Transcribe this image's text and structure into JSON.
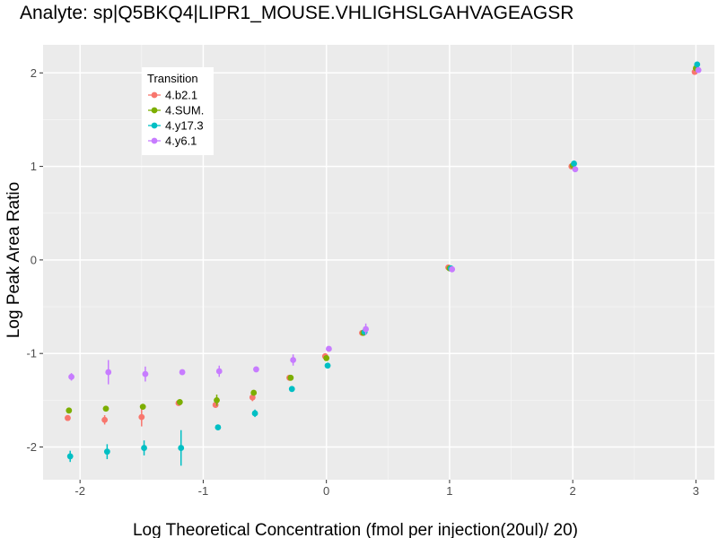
{
  "chart_data": {
    "type": "scatter",
    "title": "Analyte: sp|Q5BKQ4|LIPR1_MOUSE.VHLIGHSLGAHVAGEAGSR",
    "xlabel": "Log Theoretical Concentration (fmol per injection(20ul)/ 20)",
    "ylabel": "Log Peak Area Ratio",
    "xlim": [
      -2.3,
      3.15
    ],
    "ylim": [
      -2.35,
      2.3
    ],
    "x_ticks": [
      -2,
      -1,
      0,
      1,
      2,
      3
    ],
    "y_ticks": [
      -2,
      -1,
      0,
      1,
      2
    ],
    "grid": true,
    "legend": {
      "title": "Transition",
      "position": "top-left"
    },
    "series": [
      {
        "name": "4.b2.1",
        "color": "#F8766D",
        "points": [
          {
            "x": -2.1,
            "y": -1.69,
            "err": 0.03
          },
          {
            "x": -1.8,
            "y": -1.71,
            "err": 0.05
          },
          {
            "x": -1.5,
            "y": -1.68,
            "err": 0.1
          },
          {
            "x": -1.2,
            "y": -1.53,
            "err": 0.02
          },
          {
            "x": -0.9,
            "y": -1.55,
            "err": 0.02
          },
          {
            "x": -0.6,
            "y": -1.47,
            "err": 0.04
          },
          {
            "x": -0.3,
            "y": -1.26,
            "err": 0.02
          },
          {
            "x": -0.01,
            "y": -1.03,
            "err": 0.02
          },
          {
            "x": 0.29,
            "y": -0.78,
            "err": 0.02
          },
          {
            "x": 0.99,
            "y": -0.08,
            "err": 0.01
          },
          {
            "x": 1.99,
            "y": 1.0,
            "err": 0.01
          },
          {
            "x": 2.99,
            "y": 2.01,
            "err": 0.01
          }
        ]
      },
      {
        "name": "4.SUM.",
        "color": "#7CAE00",
        "points": [
          {
            "x": -2.09,
            "y": -1.61,
            "err": 0.01
          },
          {
            "x": -1.79,
            "y": -1.59,
            "err": 0.01
          },
          {
            "x": -1.49,
            "y": -1.57,
            "err": 0.01
          },
          {
            "x": -1.19,
            "y": -1.52,
            "err": 0.01
          },
          {
            "x": -0.89,
            "y": -1.5,
            "err": 0.06
          },
          {
            "x": -0.59,
            "y": -1.42,
            "err": 0.01
          },
          {
            "x": -0.29,
            "y": -1.26,
            "err": 0.01
          },
          {
            "x": 0.0,
            "y": -1.05,
            "err": 0.01
          },
          {
            "x": 0.3,
            "y": -0.78,
            "err": 0.01
          },
          {
            "x": 1.0,
            "y": -0.09,
            "err": 0.01
          },
          {
            "x": 2.0,
            "y": 1.01,
            "err": 0.01
          },
          {
            "x": 3.0,
            "y": 2.05,
            "err": 0.01
          }
        ]
      },
      {
        "name": "4.y17.3",
        "color": "#00BFC4",
        "points": [
          {
            "x": -2.08,
            "y": -2.1,
            "err": 0.06
          },
          {
            "x": -1.78,
            "y": -2.05,
            "err": 0.08
          },
          {
            "x": -1.48,
            "y": -2.01,
            "err": 0.08
          },
          {
            "x": -1.18,
            "y": -2.01,
            "err": 0.19
          },
          {
            "x": -0.88,
            "y": -1.79,
            "err": 0.03
          },
          {
            "x": -0.58,
            "y": -1.64,
            "err": 0.04
          },
          {
            "x": -0.28,
            "y": -1.38,
            "err": 0.01
          },
          {
            "x": 0.01,
            "y": -1.13,
            "err": 0.01
          },
          {
            "x": 0.31,
            "y": -0.77,
            "err": 0.01
          },
          {
            "x": 1.01,
            "y": -0.09,
            "err": 0.01
          },
          {
            "x": 2.01,
            "y": 1.03,
            "err": 0.01
          },
          {
            "x": 3.01,
            "y": 2.09,
            "err": 0.01
          }
        ]
      },
      {
        "name": "4.y6.1",
        "color": "#C77CFF",
        "points": [
          {
            "x": -2.07,
            "y": -1.25,
            "err": 0.04
          },
          {
            "x": -1.77,
            "y": -1.2,
            "err": 0.13
          },
          {
            "x": -1.47,
            "y": -1.22,
            "err": 0.08
          },
          {
            "x": -1.17,
            "y": -1.2,
            "err": 0.02
          },
          {
            "x": -0.87,
            "y": -1.19,
            "err": 0.06
          },
          {
            "x": -0.57,
            "y": -1.17,
            "err": 0.02
          },
          {
            "x": -0.27,
            "y": -1.07,
            "err": 0.06
          },
          {
            "x": 0.02,
            "y": -0.95,
            "err": 0.01
          },
          {
            "x": 0.32,
            "y": -0.74,
            "err": 0.06
          },
          {
            "x": 1.02,
            "y": -0.1,
            "err": 0.01
          },
          {
            "x": 2.02,
            "y": 0.97,
            "err": 0.02
          },
          {
            "x": 3.02,
            "y": 2.03,
            "err": 0.01
          }
        ]
      }
    ]
  }
}
